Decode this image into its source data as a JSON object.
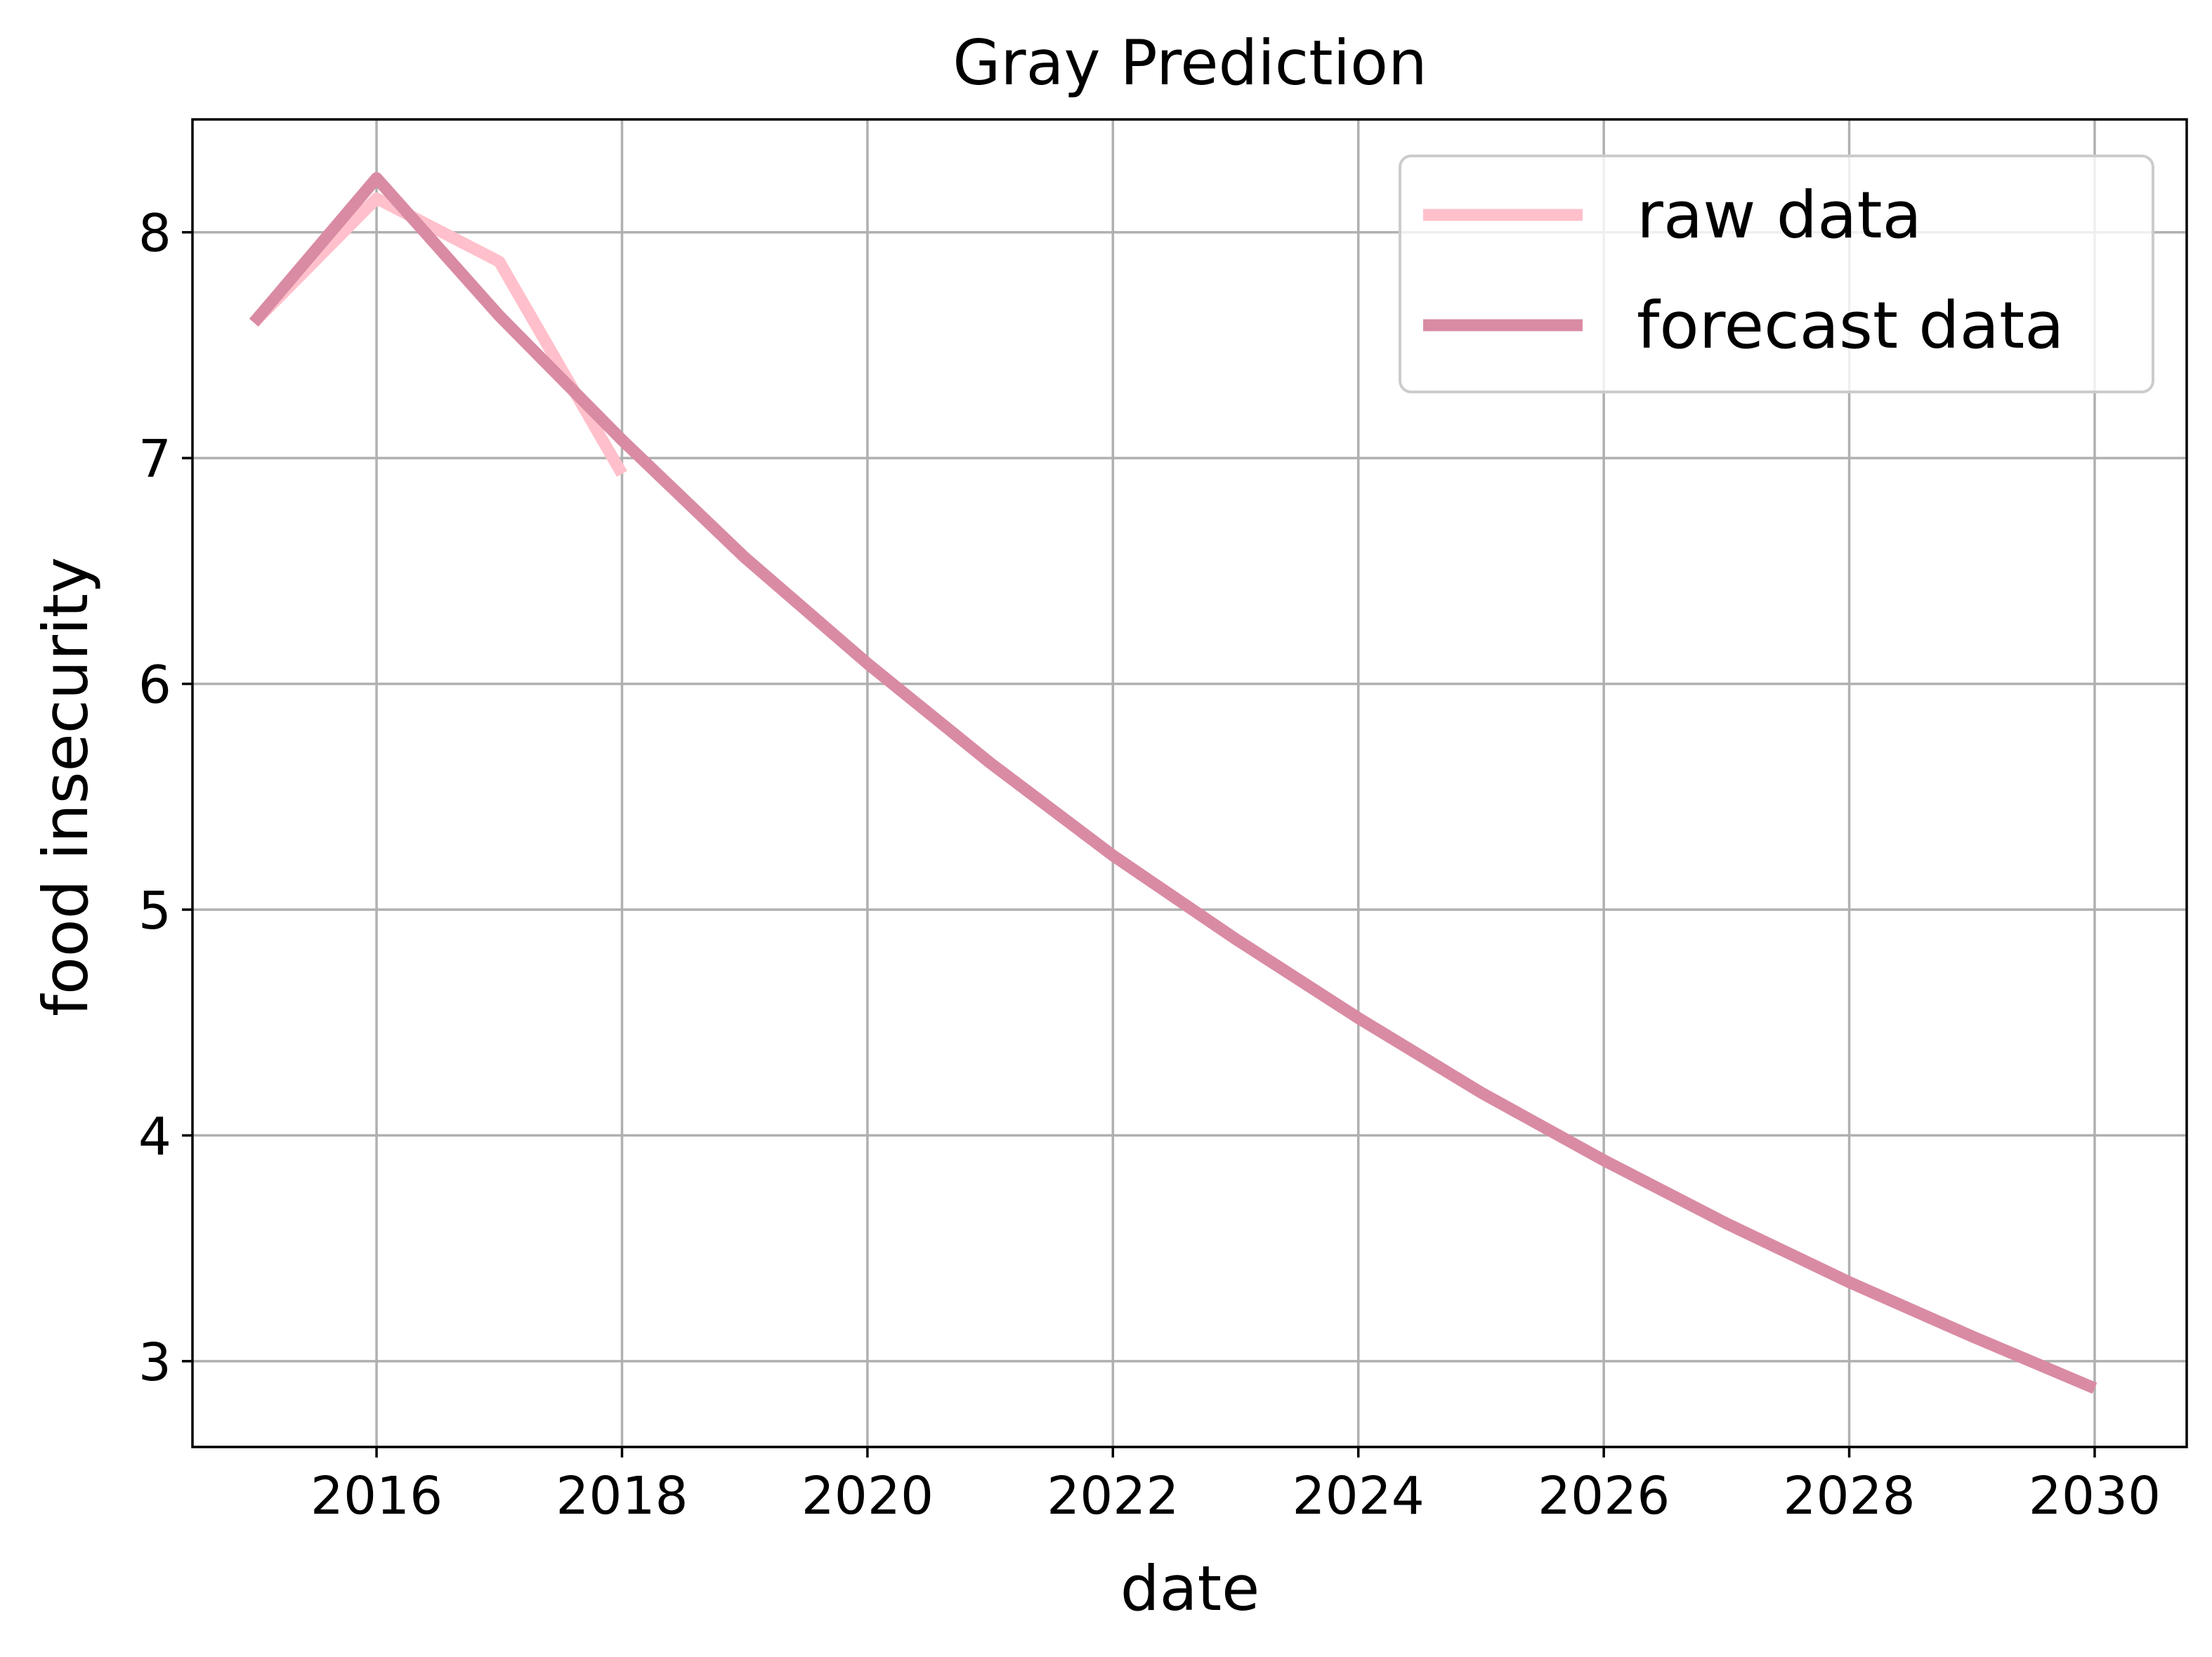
{
  "chart_data": {
    "type": "line",
    "title": "Gray Prediction",
    "xlabel": "date",
    "ylabel": "food insecurity",
    "xlim": [
      2014.5,
      2030.75
    ],
    "ylim": [
      2.62,
      8.5
    ],
    "xticks": [
      2016,
      2018,
      2020,
      2022,
      2024,
      2026,
      2028,
      2030
    ],
    "yticks": [
      3,
      4,
      5,
      6,
      7,
      8
    ],
    "grid": true,
    "legend_position": "top-right",
    "series": [
      {
        "name": "raw data",
        "color": "#ffc0cb",
        "x": [
          2015,
          2016,
          2017,
          2018
        ],
        "y": [
          7.6,
          8.15,
          7.87,
          6.93
        ]
      },
      {
        "name": "forecast data",
        "color": "#d98ba3",
        "x": [
          2015,
          2016,
          2017,
          2018,
          2019,
          2020,
          2021,
          2022,
          2023,
          2024,
          2025,
          2026,
          2027,
          2028,
          2029,
          2030
        ],
        "y": [
          7.6,
          8.24,
          7.63,
          7.08,
          6.56,
          6.09,
          5.65,
          5.24,
          4.87,
          4.52,
          4.19,
          3.89,
          3.61,
          3.35,
          3.11,
          2.88
        ]
      }
    ]
  }
}
